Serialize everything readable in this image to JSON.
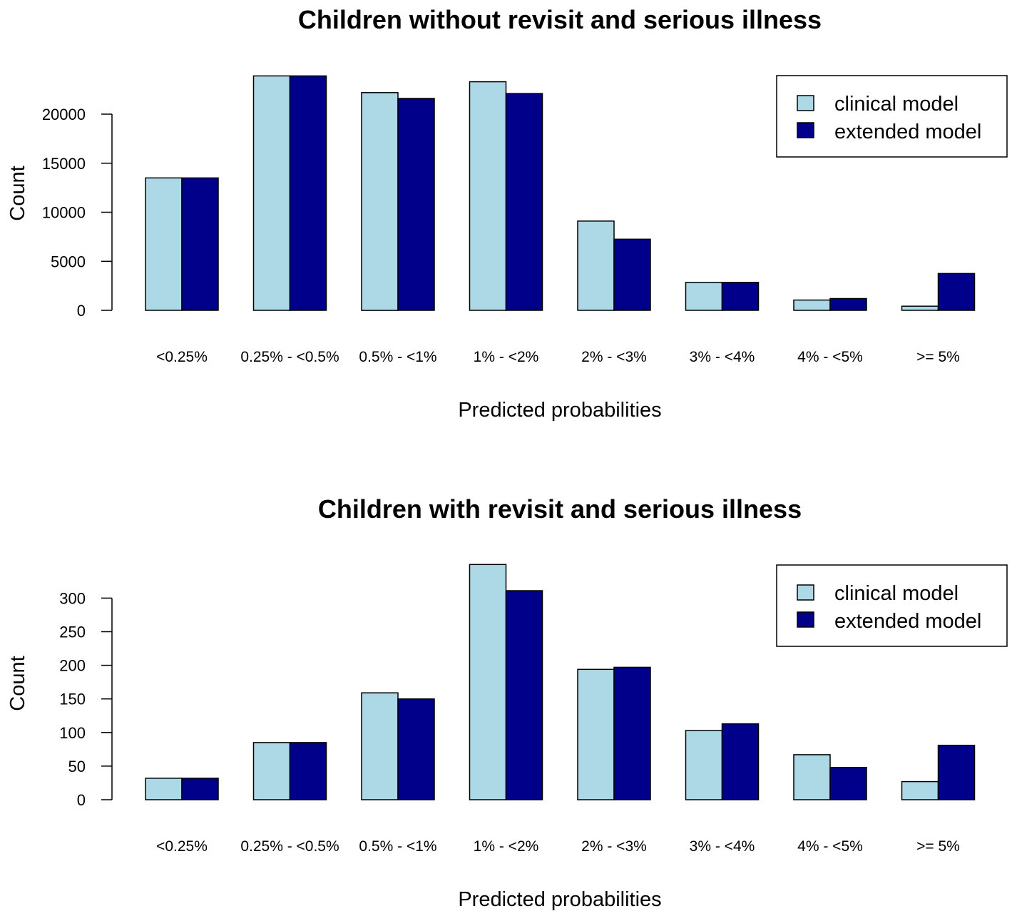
{
  "colors": {
    "clinical": "#add8e6",
    "extended": "#00008b",
    "stroke": "#000000"
  },
  "chart_data": [
    {
      "type": "bar",
      "title": "Children without revisit and serious illness",
      "xlabel": "Predicted probabilities",
      "ylabel": "Count",
      "categories": [
        "<0.25%",
        "0.25% - <0.5%",
        "0.5% - <1%",
        "1% - <2%",
        "2% - <3%",
        "3% - <4%",
        "4% - <5%",
        ">= 5%"
      ],
      "series": [
        {
          "name": "clinical model",
          "values": [
            13500,
            23900,
            22200,
            23300,
            9100,
            2850,
            1050,
            420
          ]
        },
        {
          "name": "extended model",
          "values": [
            13500,
            23900,
            21600,
            22100,
            7250,
            2850,
            1200,
            3750
          ]
        }
      ],
      "yticks": [
        0,
        5000,
        10000,
        15000,
        20000
      ],
      "ytick_labels": [
        "0",
        "5000",
        "10000",
        "15000",
        "20000"
      ],
      "ylim": [
        0,
        24000
      ],
      "legend": "top-right",
      "grid": false
    },
    {
      "type": "bar",
      "title": "Children with revisit and serious illness",
      "xlabel": "Predicted probabilities",
      "ylabel": "Count",
      "categories": [
        "<0.25%",
        "0.25% - <0.5%",
        "0.5% - <1%",
        "1% - <2%",
        "2% - <3%",
        "3% - <4%",
        "4% - <5%",
        ">= 5%"
      ],
      "series": [
        {
          "name": "clinical model",
          "values": [
            32,
            85,
            159,
            350,
            194,
            103,
            67,
            27
          ]
        },
        {
          "name": "extended model",
          "values": [
            32,
            85,
            150,
            311,
            197,
            113,
            48,
            81
          ]
        }
      ],
      "yticks": [
        0,
        50,
        100,
        150,
        200,
        250,
        300
      ],
      "ytick_labels": [
        "0",
        "50",
        "100",
        "150",
        "200",
        "250",
        "300"
      ],
      "ylim": [
        0,
        350
      ],
      "legend": "top-right",
      "grid": false
    }
  ]
}
